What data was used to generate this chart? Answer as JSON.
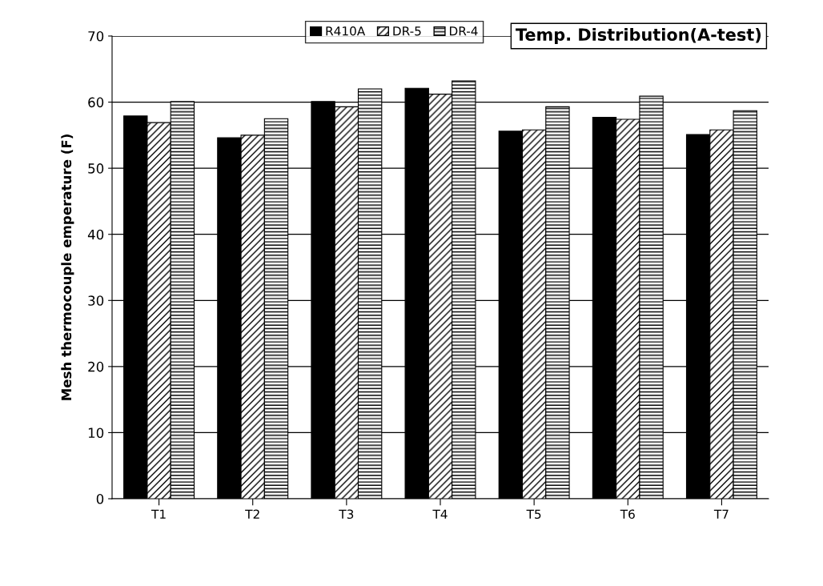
{
  "chart_data": {
    "type": "bar",
    "title": "Temp. Distribution(A-test)",
    "ylabel": "Mesh thermocouple emperature (F)",
    "categories": [
      "T1",
      "T2",
      "T3",
      "T4",
      "T5",
      "T6",
      "T7"
    ],
    "series": [
      {
        "name": "R410A",
        "color": "#000000",
        "values": [
          57.9,
          54.6,
          60.1,
          62.1,
          55.6,
          57.7,
          55.1
        ]
      },
      {
        "name": "DR-5",
        "color": "#000000",
        "values": [
          56.9,
          55.0,
          59.3,
          61.2,
          55.8,
          57.4,
          55.8
        ]
      },
      {
        "name": "DR-4",
        "color": "#000000",
        "values": [
          60.1,
          57.5,
          62.0,
          63.2,
          59.3,
          60.9,
          58.7
        ]
      }
    ],
    "ylim": [
      0,
      70
    ],
    "yticks": [
      0,
      10,
      20,
      30,
      40,
      50,
      60,
      70
    ],
    "grid": "y",
    "legend": "top"
  }
}
